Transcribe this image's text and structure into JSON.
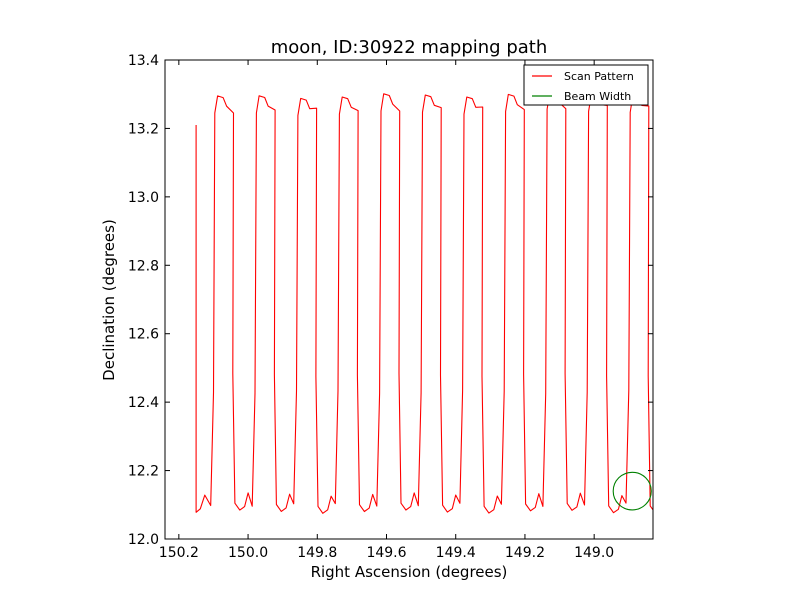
{
  "chart_data": {
    "type": "line",
    "title": "moon, ID:30922 mapping path",
    "xlabel": "Right Ascension (degrees)",
    "ylabel": "Declination (degrees)",
    "xlim": [
      150.24,
      148.83
    ],
    "ylim": [
      12.0,
      13.4
    ],
    "x_inverted": true,
    "xticks": [
      150.2,
      150.0,
      149.8,
      149.6,
      149.4,
      149.2,
      149.0
    ],
    "xtick_labels": [
      "150.2",
      "150.0",
      "149.8",
      "149.6",
      "149.4",
      "149.2",
      "149.0"
    ],
    "yticks": [
      12.0,
      12.2,
      12.4,
      12.6,
      12.8,
      13.0,
      13.2,
      13.4
    ],
    "ytick_labels": [
      "12.0",
      "12.2",
      "12.4",
      "12.6",
      "12.8",
      "13.0",
      "13.2",
      "13.4"
    ],
    "grid": false,
    "legend": {
      "placement": "top-right",
      "entries": [
        "Scan Pattern",
        "Beam Width"
      ]
    },
    "series": [
      {
        "name": "Scan Pattern",
        "color": "#ff0000",
        "scan_start_ra": 150.15,
        "scan_step_ra": 0.06,
        "scan_lines": 24,
        "dec_low": 12.08,
        "dec_high": 13.29
      },
      {
        "name": "Beam Width",
        "color": "#008000",
        "center_ra": 148.89,
        "center_dec": 12.14,
        "radius_deg": 0.055
      }
    ]
  }
}
